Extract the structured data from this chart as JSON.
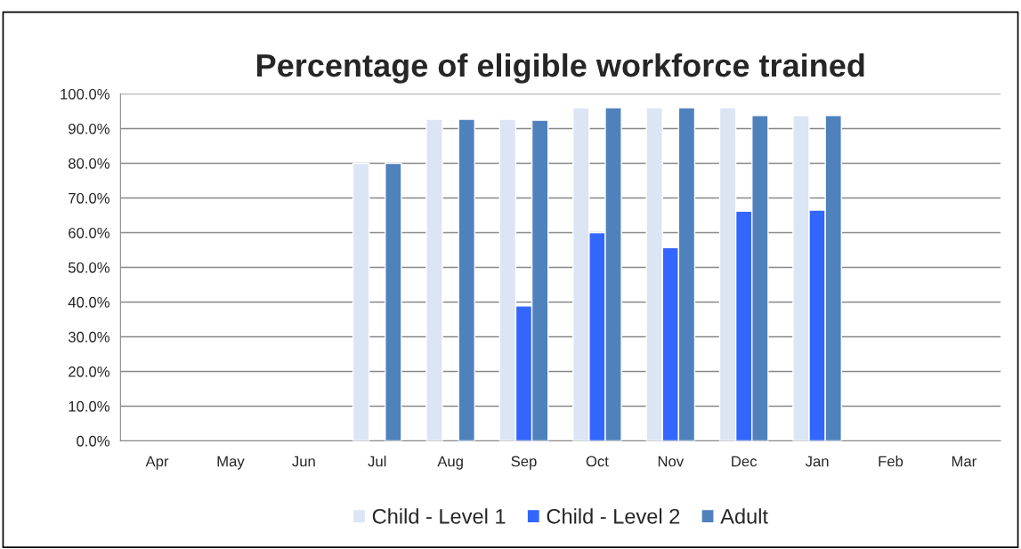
{
  "chart_data": {
    "type": "bar",
    "title": "Percentage of eligible workforce trained",
    "categories": [
      "Apr",
      "May",
      "Jun",
      "Jul",
      "Aug",
      "Sep",
      "Oct",
      "Nov",
      "Dec",
      "Jan",
      "Feb",
      "Mar"
    ],
    "series": [
      {
        "name": "Child - Level 1",
        "color": "#dbe5f4",
        "values": [
          null,
          null,
          null,
          80.0,
          92.7,
          92.7,
          96.0,
          96.0,
          96.0,
          93.8,
          null,
          null
        ]
      },
      {
        "name": "Child - Level 2",
        "color": "#3366ff",
        "values": [
          null,
          null,
          null,
          null,
          null,
          38.9,
          60.0,
          55.7,
          66.2,
          66.5,
          null,
          null
        ]
      },
      {
        "name": "Adult",
        "color": "#4f81bd",
        "values": [
          null,
          null,
          null,
          80.0,
          92.7,
          92.4,
          96.0,
          96.0,
          93.8,
          93.8,
          null,
          null
        ]
      }
    ],
    "ylim": [
      0,
      100
    ],
    "yticks": [
      {
        "value": 0,
        "label": "0.0%"
      },
      {
        "value": 10,
        "label": "10.0%"
      },
      {
        "value": 20,
        "label": "20.0%"
      },
      {
        "value": 30,
        "label": "30.0%"
      },
      {
        "value": 40,
        "label": "40.0%"
      },
      {
        "value": 50,
        "label": "50.0%"
      },
      {
        "value": 60,
        "label": "60.0%"
      },
      {
        "value": 70,
        "label": "70.0%"
      },
      {
        "value": 80,
        "label": "80.0%"
      },
      {
        "value": 90,
        "label": "90.0%"
      },
      {
        "value": 100,
        "label": "100.0%"
      }
    ],
    "grid": "y",
    "legend": "bottom"
  }
}
